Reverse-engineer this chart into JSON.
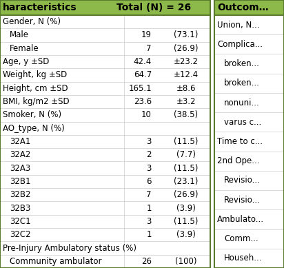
{
  "header_bg": "#8db84a",
  "border_color": "#5a7a2e",
  "header_font_size": 10,
  "font_size": 8.5,
  "rows": [
    {
      "label": "Gender, N (%)",
      "val1": "",
      "val2": "",
      "indent": false
    },
    {
      "label": "Male",
      "val1": "19",
      "val2": "(73.1)",
      "indent": true
    },
    {
      "label": "Female",
      "val1": "7",
      "val2": "(26.9)",
      "indent": true
    },
    {
      "label": "Age, y ±SD",
      "val1": "42.4",
      "val2": "±23.2",
      "indent": false
    },
    {
      "label": "Weight, kg ±SD",
      "val1": "64.7",
      "val2": "±12.4",
      "indent": false
    },
    {
      "label": "Height, cm ±SD",
      "val1": "165.1",
      "val2": "±8.6",
      "indent": false
    },
    {
      "label": "BMI, kg/m2 ±SD",
      "val1": "23.6",
      "val2": "±3.2",
      "indent": false
    },
    {
      "label": "Smoker, N (%)",
      "val1": "10",
      "val2": "(38.5)",
      "indent": false
    },
    {
      "label": "AO_type, N (%)",
      "val1": "",
      "val2": "",
      "indent": false
    },
    {
      "label": "32A1",
      "val1": "3",
      "val2": "(11.5)",
      "indent": true
    },
    {
      "label": "32A2",
      "val1": "2",
      "val2": "(7.7)",
      "indent": true
    },
    {
      "label": "32A3",
      "val1": "3",
      "val2": "(11.5)",
      "indent": true
    },
    {
      "label": "32B1",
      "val1": "6",
      "val2": "(23.1)",
      "indent": true
    },
    {
      "label": "32B2",
      "val1": "7",
      "val2": "(26.9)",
      "indent": true
    },
    {
      "label": "32B3",
      "val1": "1",
      "val2": "(3.9)",
      "indent": true
    },
    {
      "label": "32C1",
      "val1": "3",
      "val2": "(11.5)",
      "indent": true
    },
    {
      "label": "32C2",
      "val1": "1",
      "val2": "(3.9)",
      "indent": true
    },
    {
      "label": "Pre-Injury Ambulatory status (%)",
      "val1": "",
      "val2": "",
      "indent": false
    },
    {
      "label": "Community ambulator",
      "val1": "26",
      "val2": "(100)",
      "indent": true
    }
  ],
  "right_rows": [
    {
      "label": "Union, N...",
      "indent": false
    },
    {
      "label": "Complica...",
      "indent": false
    },
    {
      "label": "broken...",
      "indent": true
    },
    {
      "label": "broken...",
      "indent": true
    },
    {
      "label": "nonuni...",
      "indent": true
    },
    {
      "label": "varus c...",
      "indent": true
    },
    {
      "label": "Time to c...",
      "indent": false
    },
    {
      "label": "2nd Ope...",
      "indent": false
    },
    {
      "label": "Revisio...",
      "indent": true
    },
    {
      "label": "Revisio...",
      "indent": true
    },
    {
      "label": "Ambulato...",
      "indent": false
    },
    {
      "label": "Comm...",
      "indent": true
    },
    {
      "label": "Househ...",
      "indent": true
    }
  ]
}
